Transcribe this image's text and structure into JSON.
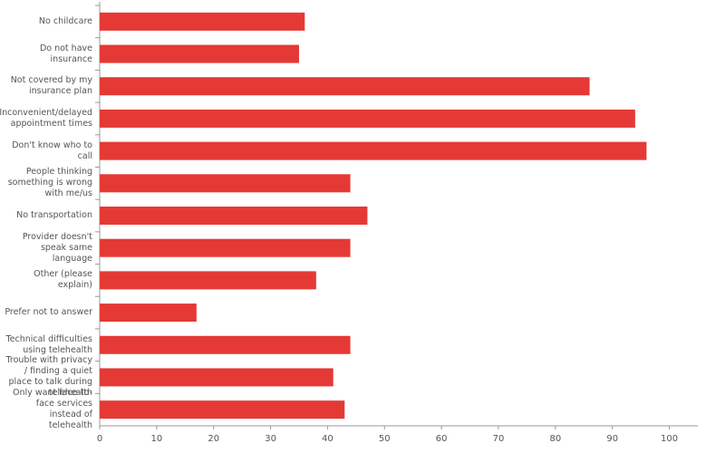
{
  "chart_data": {
    "type": "barh",
    "categories": [
      "No childcare",
      "Do not have insurance",
      "Not covered by my insurance plan",
      "Inconvenient/delayed appointment times",
      "Don't know who to call",
      "People thinking something is wrong with me/us",
      "No transportation",
      "Provider doesn't speak same language",
      "Other (please explain)",
      "Prefer not to answer",
      "Technical difficulties using telehealth",
      "Trouble with privacy / finding a quiet place to talk during telehealth",
      "Only want face-to-face services instead of telehealth"
    ],
    "values": [
      36,
      35,
      86,
      94,
      96,
      44,
      47,
      44,
      38,
      17,
      44,
      41,
      43
    ],
    "color": "#e53935",
    "xlim": [
      0,
      105
    ],
    "xticks": [
      0,
      10,
      20,
      30,
      40,
      50,
      60,
      70,
      80,
      90,
      100
    ]
  }
}
